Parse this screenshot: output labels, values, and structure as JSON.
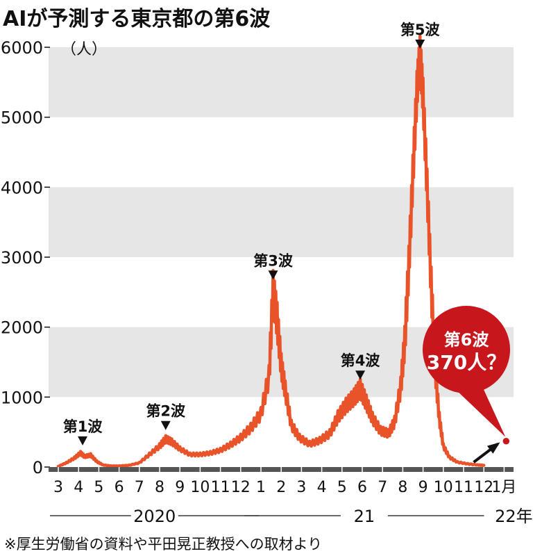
{
  "chart_data": {
    "type": "line",
    "title": "AIが予測する東京都の第6波",
    "ylabel_unit": "（人）",
    "ylim": [
      0,
      6000
    ],
    "yticks": [
      "0",
      "1000",
      "2000",
      "3000",
      "4000",
      "5000",
      "6000"
    ],
    "xticks": [
      "3",
      "4",
      "5",
      "6",
      "7",
      "8",
      "9",
      "10",
      "11",
      "12",
      "1",
      "2",
      "3",
      "4",
      "5",
      "6",
      "7",
      "8",
      "9",
      "10",
      "11",
      "12",
      "1月"
    ],
    "years": [
      "2020",
      "21",
      "22年"
    ],
    "series": [
      {
        "color": "#e8532a",
        "points": [
          [
            0,
            10
          ],
          [
            0.4,
            60
          ],
          [
            0.8,
            130
          ],
          [
            1.1,
            200
          ],
          [
            1.3,
            150
          ],
          [
            1.6,
            170
          ],
          [
            1.9,
            80
          ],
          [
            2.2,
            30
          ],
          [
            2.6,
            15
          ],
          [
            3.0,
            15
          ],
          [
            3.5,
            25
          ],
          [
            4.0,
            60
          ],
          [
            4.5,
            180
          ],
          [
            5.0,
            300
          ],
          [
            5.3,
            400
          ],
          [
            5.6,
            360
          ],
          [
            6.0,
            260
          ],
          [
            6.5,
            180
          ],
          [
            7.0,
            180
          ],
          [
            7.5,
            200
          ],
          [
            8.0,
            240
          ],
          [
            8.5,
            320
          ],
          [
            9.0,
            420
          ],
          [
            9.5,
            560
          ],
          [
            10.0,
            760
          ],
          [
            10.4,
            1300
          ],
          [
            10.6,
            2550
          ],
          [
            10.8,
            2100
          ],
          [
            11.0,
            1450
          ],
          [
            11.2,
            1100
          ],
          [
            11.5,
            600
          ],
          [
            11.9,
            420
          ],
          [
            12.4,
            330
          ],
          [
            12.9,
            380
          ],
          [
            13.4,
            480
          ],
          [
            13.8,
            720
          ],
          [
            14.2,
            880
          ],
          [
            14.6,
            1000
          ],
          [
            14.9,
            1120
          ],
          [
            15.2,
            920
          ],
          [
            15.5,
            700
          ],
          [
            15.9,
            520
          ],
          [
            16.3,
            480
          ],
          [
            16.6,
            650
          ],
          [
            16.9,
            1150
          ],
          [
            17.1,
            1800
          ],
          [
            17.3,
            2900
          ],
          [
            17.5,
            4200
          ],
          [
            17.7,
            5400
          ],
          [
            17.85,
            5900
          ],
          [
            18.0,
            5300
          ],
          [
            18.2,
            4000
          ],
          [
            18.4,
            2600
          ],
          [
            18.6,
            1400
          ],
          [
            18.8,
            700
          ],
          [
            19.0,
            300
          ],
          [
            19.3,
            140
          ],
          [
            19.7,
            70
          ],
          [
            20.2,
            45
          ],
          [
            20.7,
            30
          ],
          [
            21.0,
            25
          ]
        ]
      }
    ],
    "annotations": [
      {
        "label": "第1波",
        "x": 1.2,
        "y": 210
      },
      {
        "label": "第2波",
        "x": 5.3,
        "y": 430
      },
      {
        "label": "第3波",
        "x": 10.6,
        "y": 2580
      },
      {
        "label": "第4波",
        "x": 14.9,
        "y": 1150
      },
      {
        "label": "第5波",
        "x": 17.85,
        "y": 5950
      }
    ],
    "forecast": {
      "label_line1": "第6波",
      "label_line2": "370人？",
      "x": 22.1,
      "y": 370,
      "color": "#c8161d"
    },
    "grid": "alternating horizontal bands",
    "grid_band_color": "#e6e6e6",
    "line_color": "#e8532a"
  },
  "note": "※厚生労働省の資料や平田晃正教授への取材より"
}
